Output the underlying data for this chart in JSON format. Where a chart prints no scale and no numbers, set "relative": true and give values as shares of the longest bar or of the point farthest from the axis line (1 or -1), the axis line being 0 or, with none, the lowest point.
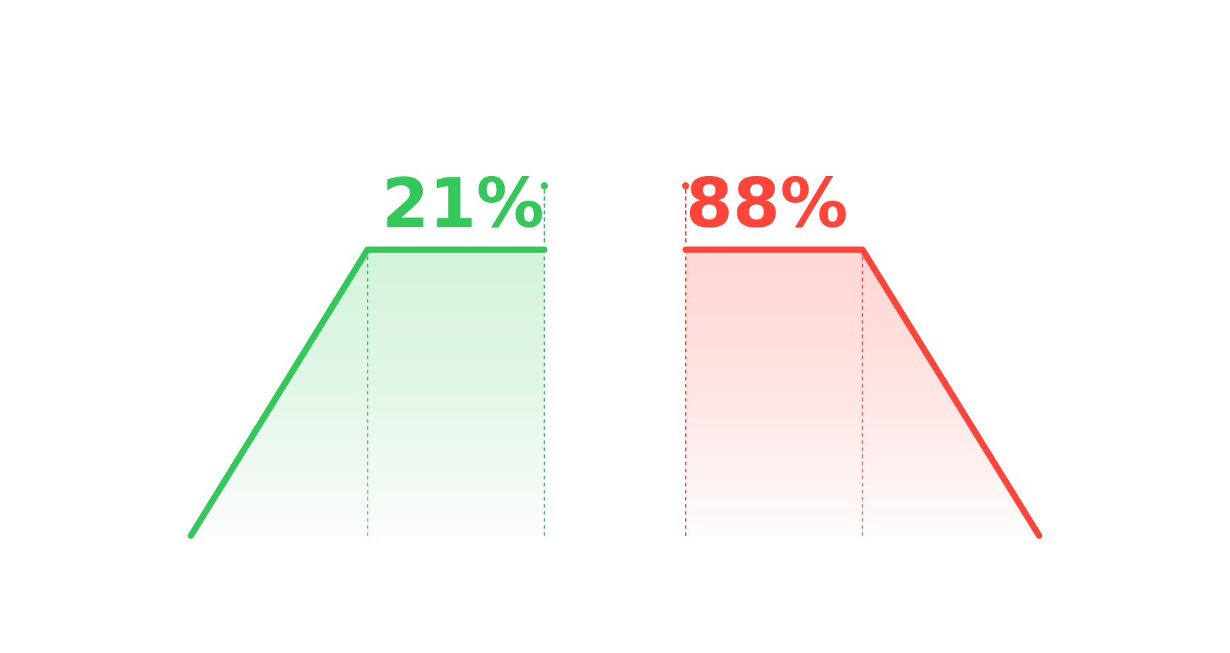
{
  "chart_data": [
    {
      "type": "area",
      "title": "21%",
      "categories": [
        null,
        null,
        null
      ],
      "relative": true,
      "series": [
        {
          "color": "#34c759",
          "values": [
            0,
            1,
            1
          ]
        }
      ]
    },
    {
      "type": "area",
      "title": "88%",
      "categories": [
        null,
        null,
        null
      ],
      "relative": true,
      "series": [
        {
          "color": "#ff453a",
          "values": [
            1,
            1,
            0
          ]
        }
      ]
    }
  ]
}
